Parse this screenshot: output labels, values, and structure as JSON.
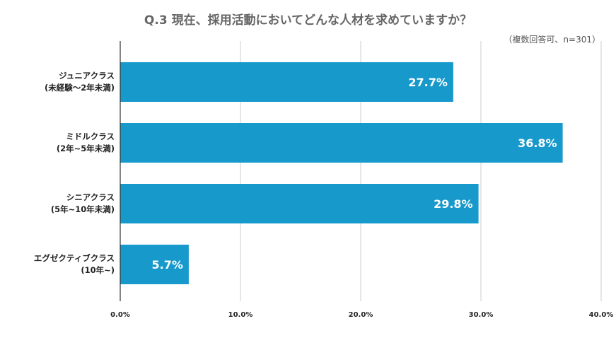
{
  "chart_data": {
    "type": "bar",
    "orientation": "horizontal",
    "title": "Q.3 現在、採用活動においてどんな人材を求めていますか？",
    "note": "（複数回答可、n=301）",
    "categories": [
      {
        "line1": "ジュニアクラス",
        "line2": "(未経験〜2年未満)"
      },
      {
        "line1": "ミドルクラス",
        "line2": "(2年~5年未満)"
      },
      {
        "line1": "シニアクラス",
        "line2": "(5年~10年未満)"
      },
      {
        "line1": "エグゼクティブクラス",
        "line2": "(10年~)"
      }
    ],
    "values": [
      27.7,
      36.8,
      29.8,
      5.7
    ],
    "value_labels": [
      "27.7%",
      "36.8%",
      "29.8%",
      "5.7%"
    ],
    "xlim": [
      0,
      40
    ],
    "ticks": [
      0,
      10,
      20,
      30,
      40
    ],
    "tick_labels": [
      "0.0%",
      "10.0%",
      "20.0%",
      "30.0%",
      "40.0%"
    ],
    "grid": true,
    "bar_color": "#1799cc",
    "grid_color": "#cccccc",
    "axis_color": "#333333"
  }
}
